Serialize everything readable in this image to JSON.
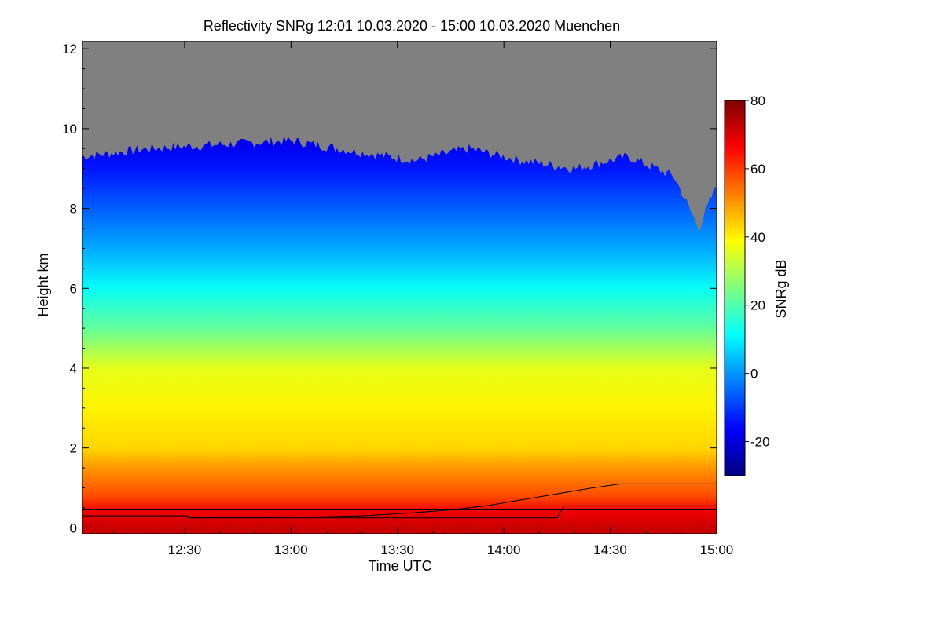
{
  "chart_data": {
    "type": "heatmap",
    "title": "Reflectivity SNRg   12:01 10.03.2020 - 15:00 10.03.2020 Muenchen",
    "xlabel": "Time UTC",
    "ylabel": "Height km",
    "colorbar_label": "SNRg dB",
    "x_range_minutes_utc": [
      721,
      900
    ],
    "x_ticks": [
      {
        "label": "12:30",
        "minute": 750
      },
      {
        "label": "13:00",
        "minute": 780
      },
      {
        "label": "13:30",
        "minute": 810
      },
      {
        "label": "14:00",
        "minute": 840
      },
      {
        "label": "14:30",
        "minute": 870
      },
      {
        "label": "15:00",
        "minute": 900
      }
    ],
    "y_range_km": [
      -0.15,
      12.2
    ],
    "y_ticks": [
      0,
      2,
      4,
      6,
      8,
      10,
      12
    ],
    "colorbar_range_db": [
      -30,
      80
    ],
    "colorbar_ticks": [
      -20,
      0,
      20,
      40,
      60,
      80
    ],
    "colormap": [
      "#00007f",
      "#0000ff",
      "#007fff",
      "#00ffff",
      "#7fff7f",
      "#ffff00",
      "#ff7f00",
      "#ff0000",
      "#7f0000"
    ],
    "no_signal_color": "#808080",
    "snr_profile_by_height": [
      {
        "km": 0.0,
        "db": 72
      },
      {
        "km": 0.4,
        "db": 68
      },
      {
        "km": 0.8,
        "db": 58
      },
      {
        "km": 1.5,
        "db": 50
      },
      {
        "km": 2.0,
        "db": 43
      },
      {
        "km": 3.0,
        "db": 40
      },
      {
        "km": 4.0,
        "db": 36
      },
      {
        "km": 5.0,
        "db": 22
      },
      {
        "km": 6.0,
        "db": 12
      },
      {
        "km": 7.0,
        "db": 2
      },
      {
        "km": 8.0,
        "db": -6
      },
      {
        "km": 9.0,
        "db": -14
      },
      {
        "km": 9.6,
        "db": -18
      }
    ],
    "signal_top_km": [
      {
        "minute": 721,
        "km": 9.3
      },
      {
        "minute": 740,
        "km": 9.5
      },
      {
        "minute": 760,
        "km": 9.6
      },
      {
        "minute": 780,
        "km": 9.7
      },
      {
        "minute": 800,
        "km": 9.4
      },
      {
        "minute": 815,
        "km": 9.2
      },
      {
        "minute": 830,
        "km": 9.5
      },
      {
        "minute": 845,
        "km": 9.2
      },
      {
        "minute": 860,
        "km": 9.0
      },
      {
        "minute": 875,
        "km": 9.3
      },
      {
        "minute": 888,
        "km": 8.8
      },
      {
        "minute": 895,
        "km": 7.5
      },
      {
        "minute": 900,
        "km": 8.6
      }
    ],
    "series": [
      {
        "points": [
          [
            721,
            0.45
          ],
          [
            751,
            0.45
          ],
          [
            900,
            0.45
          ]
        ]
      },
      {
        "points": [
          [
            721,
            0.3
          ],
          [
            751,
            0.3
          ],
          [
            751,
            0.25
          ],
          [
            785,
            0.27
          ],
          [
            800,
            0.3
          ],
          [
            815,
            0.38
          ],
          [
            825,
            0.45
          ],
          [
            835,
            0.55
          ],
          [
            845,
            0.7
          ],
          [
            855,
            0.85
          ],
          [
            865,
            1.0
          ],
          [
            873,
            1.1
          ],
          [
            900,
            1.1
          ]
        ]
      },
      {
        "points": [
          [
            751,
            0.25
          ],
          [
            855,
            0.25
          ],
          [
            857,
            0.55
          ],
          [
            900,
            0.55
          ]
        ]
      }
    ]
  }
}
